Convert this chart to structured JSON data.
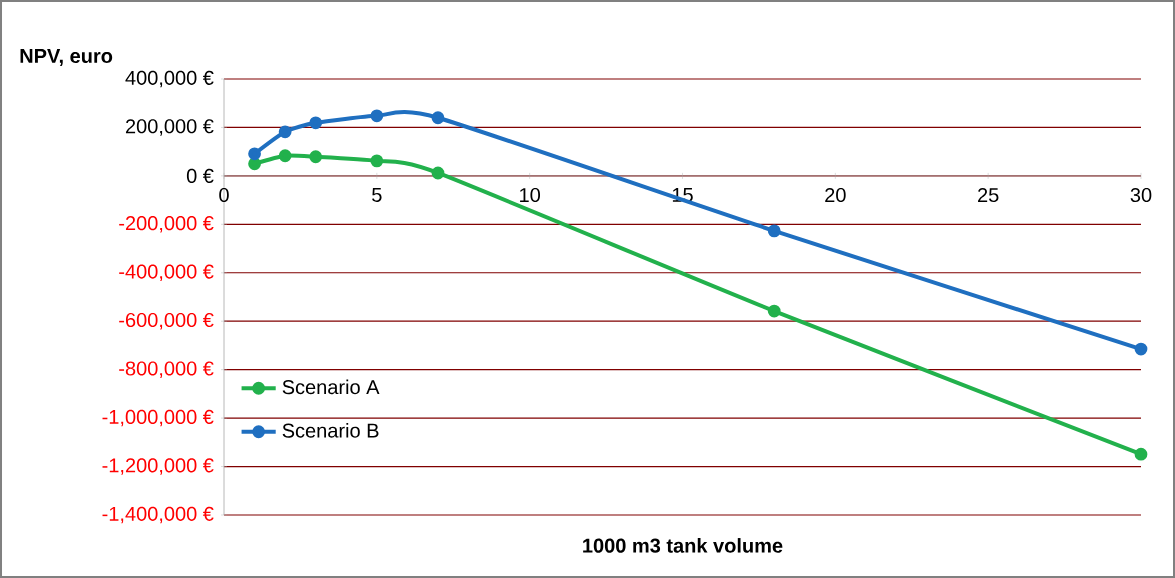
{
  "chart_data": {
    "type": "line",
    "xlabel": "1000 m3 tank volume",
    "ylabel": "NPV, euro",
    "xlim": [
      0,
      30
    ],
    "xticks": [
      0,
      5,
      10,
      15,
      20,
      25,
      30
    ],
    "ylim": [
      -1400000,
      400000
    ],
    "yticks": [
      {
        "value": 400000,
        "label": "400,000 €"
      },
      {
        "value": 200000,
        "label": "200,000 €"
      },
      {
        "value": 0,
        "label": "0 €"
      },
      {
        "value": -200000,
        "label": "-200,000 €"
      },
      {
        "value": -400000,
        "label": "-400,000 €"
      },
      {
        "value": -600000,
        "label": "-600,000 €"
      },
      {
        "value": -800000,
        "label": "-800,000 €"
      },
      {
        "value": -1000000,
        "label": "-1,000,000 €"
      },
      {
        "value": -1200000,
        "label": "-1,200,000 €"
      },
      {
        "value": -1400000,
        "label": "-1,400,000 €"
      }
    ],
    "x": [
      1,
      2,
      3,
      5,
      7,
      18,
      30
    ],
    "series": [
      {
        "name": "Scenario A",
        "color": "#22b14c",
        "values": [
          50000,
          83000,
          79000,
          62000,
          12000,
          -558000,
          -1149000
        ]
      },
      {
        "name": "Scenario B",
        "color": "#1f6fc0",
        "values": [
          91000,
          182000,
          219000,
          248000,
          240000,
          -227000,
          -715000
        ]
      }
    ],
    "grid": "y",
    "legend": "left",
    "marker": "circle",
    "line_style": "solid"
  }
}
